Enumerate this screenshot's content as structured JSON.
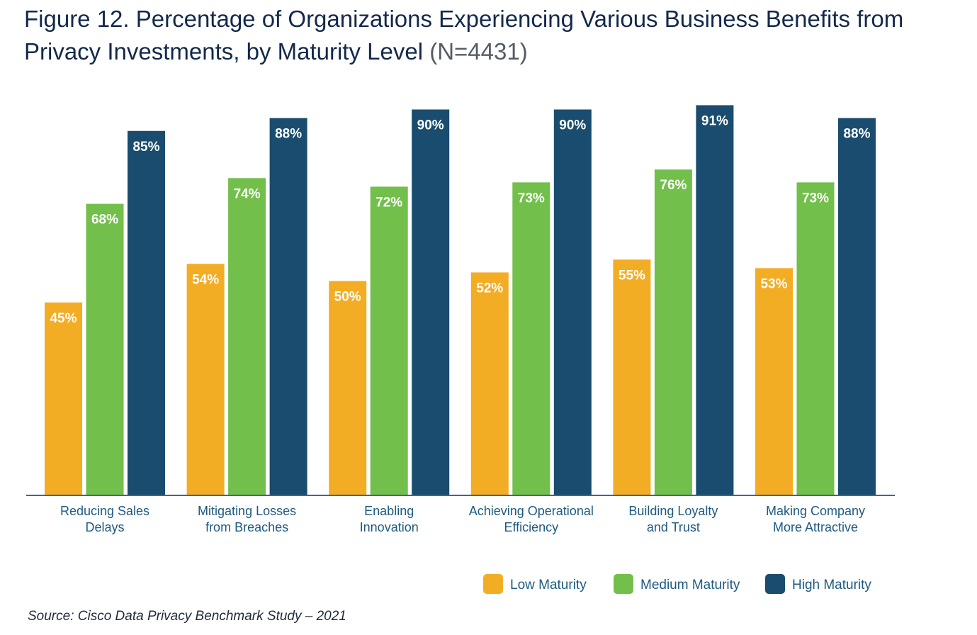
{
  "title": {
    "main": "Figure 12. Percentage of Organizations Experiencing Various Business Benefits from Privacy Investments, by Maturity Level",
    "n_label": "(N=4431)"
  },
  "source": "Source: Cisco Data Privacy Benchmark Study – 2021",
  "chart_data": {
    "type": "bar",
    "categories": [
      [
        "Reducing Sales",
        "Delays"
      ],
      [
        "Mitigating Losses",
        "from Breaches"
      ],
      [
        "Enabling",
        "Innovation"
      ],
      [
        "Achieving Operational",
        "Efficiency"
      ],
      [
        "Building Loyalty",
        "and Trust"
      ],
      [
        "Making Company",
        "More Attractive"
      ]
    ],
    "series": [
      {
        "name": "Low Maturity",
        "color": "#f3ad25",
        "values": [
          45,
          54,
          50,
          52,
          55,
          53
        ]
      },
      {
        "name": "Medium Maturity",
        "color": "#72bf4b",
        "values": [
          68,
          74,
          72,
          73,
          76,
          73
        ]
      },
      {
        "name": "High Maturity",
        "color": "#194c6e",
        "values": [
          85,
          88,
          90,
          90,
          91,
          88
        ]
      }
    ],
    "value_suffix": "%",
    "ylim": [
      0,
      100
    ],
    "grid": false,
    "legend_position": "bottom-right",
    "title": "Figure 12. Percentage of Organizations Experiencing Various Business Benefits from Privacy Investments, by Maturity Level (N=4431)",
    "xlabel": "",
    "ylabel": ""
  }
}
